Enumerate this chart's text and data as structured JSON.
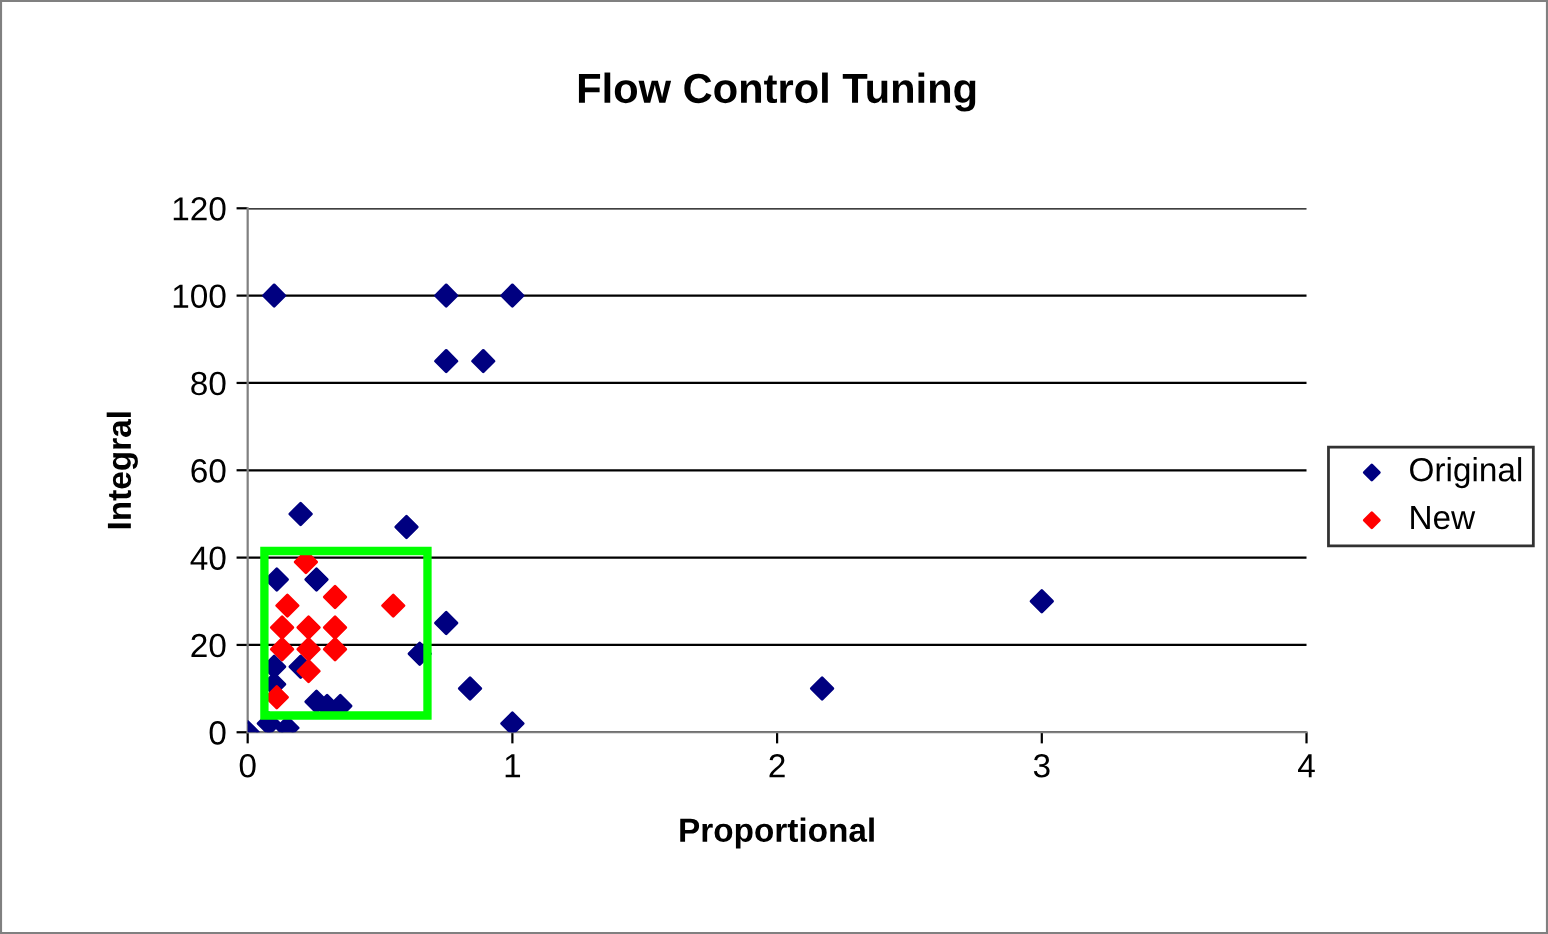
{
  "chart_data": {
    "type": "scatter",
    "title": "Flow Control Tuning",
    "xlabel": "Proportional",
    "ylabel": "Integral",
    "xlim": [
      0,
      4
    ],
    "xticks": [
      0,
      1,
      2,
      3,
      4
    ],
    "ylim": [
      0,
      120
    ],
    "yticks": [
      0,
      20,
      40,
      60,
      80,
      100,
      120
    ],
    "grid": "y",
    "legend": "right",
    "marker": "diamond",
    "series": [
      {
        "name": "Original",
        "color": "#000080",
        "x": [
          0.1,
          0.75,
          1.0,
          0.75,
          0.89,
          0.2,
          0.6,
          0.11,
          0.26,
          0.75,
          0.65,
          0.2,
          0.1,
          0.1,
          0.84,
          0.26,
          0.3,
          0.35,
          1.0,
          0,
          0.08,
          0.15,
          2.17,
          3.0
        ],
        "values": [
          100,
          100,
          100,
          85,
          85,
          50,
          47,
          35,
          35,
          25,
          18,
          15,
          15,
          11,
          10,
          7,
          6,
          6,
          2,
          0,
          2,
          1,
          10,
          30
        ]
      },
      {
        "name": "New",
        "color": "#ff0000",
        "x": [
          0.22,
          0.15,
          0.33,
          0.55,
          0.13,
          0.23,
          0.33,
          0.13,
          0.23,
          0.33,
          0.23,
          0.11
        ],
        "values": [
          39,
          29,
          31,
          29,
          24,
          24,
          24,
          19,
          19,
          19,
          14,
          8
        ]
      }
    ]
  }
}
